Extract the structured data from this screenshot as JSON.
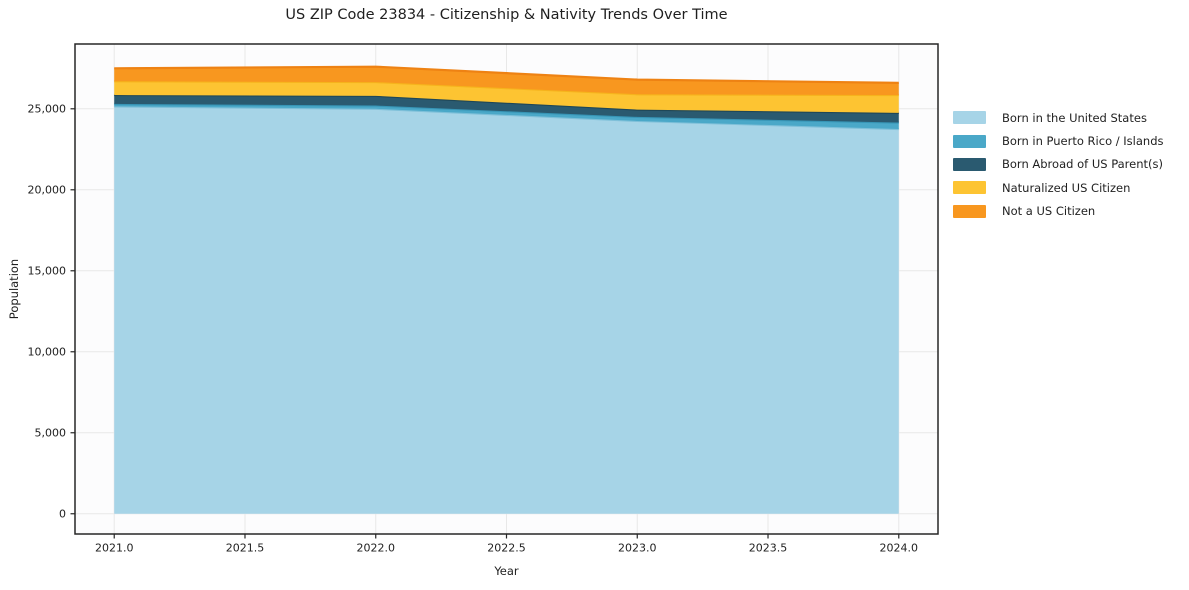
{
  "chart_data": {
    "type": "area",
    "stacked": true,
    "title": "US ZIP Code 23834 - Citizenship & Nativity Trends Over Time",
    "xlabel": "Year",
    "ylabel": "Population",
    "x": [
      2021,
      2022,
      2023,
      2024
    ],
    "series": [
      {
        "name": "Born in the United States",
        "color": "#a6d4e7",
        "edge_color": "#7fc0d9",
        "values": [
          25150,
          25000,
          24250,
          23750
        ]
      },
      {
        "name": "Born in Puerto Rico / Islands",
        "color": "#4aa8c8",
        "edge_color": "#3795b6",
        "values": [
          150,
          200,
          250,
          400
        ]
      },
      {
        "name": "Born Abroad of US Parent(s)",
        "color": "#2a5a70",
        "edge_color": "#1f4757",
        "values": [
          550,
          600,
          450,
          600
        ]
      },
      {
        "name": "Naturalized US Citizen",
        "color": "#fdc432",
        "edge_color": "#f6b31c",
        "values": [
          850,
          850,
          950,
          1100
        ]
      },
      {
        "name": "Not a US Citizen",
        "color": "#f8971f",
        "edge_color": "#ee8213",
        "values": [
          800,
          950,
          900,
          750
        ]
      }
    ],
    "xlim": [
      2020.85,
      2024.15
    ],
    "ylim": [
      -1250,
      29000
    ],
    "x_ticks": {
      "values": [
        2021.0,
        2021.5,
        2022.0,
        2022.5,
        2023.0,
        2023.5,
        2024.0
      ],
      "labels": [
        "2021.0",
        "2021.5",
        "2022.0",
        "2022.5",
        "2023.0",
        "2023.5",
        "2024.0"
      ]
    },
    "y_ticks": {
      "values": [
        0,
        5000,
        10000,
        15000,
        20000,
        25000
      ],
      "labels": [
        "0",
        "5,000",
        "10,000",
        "15,000",
        "20,000",
        "25,000"
      ]
    },
    "grid": true,
    "legend_position": "right"
  },
  "colors": {
    "text": "#1f1f1f",
    "grid": "#e8e8e8",
    "frame": "#262626",
    "plot_background": "#fcfcfd",
    "background": "#ffffff"
  }
}
